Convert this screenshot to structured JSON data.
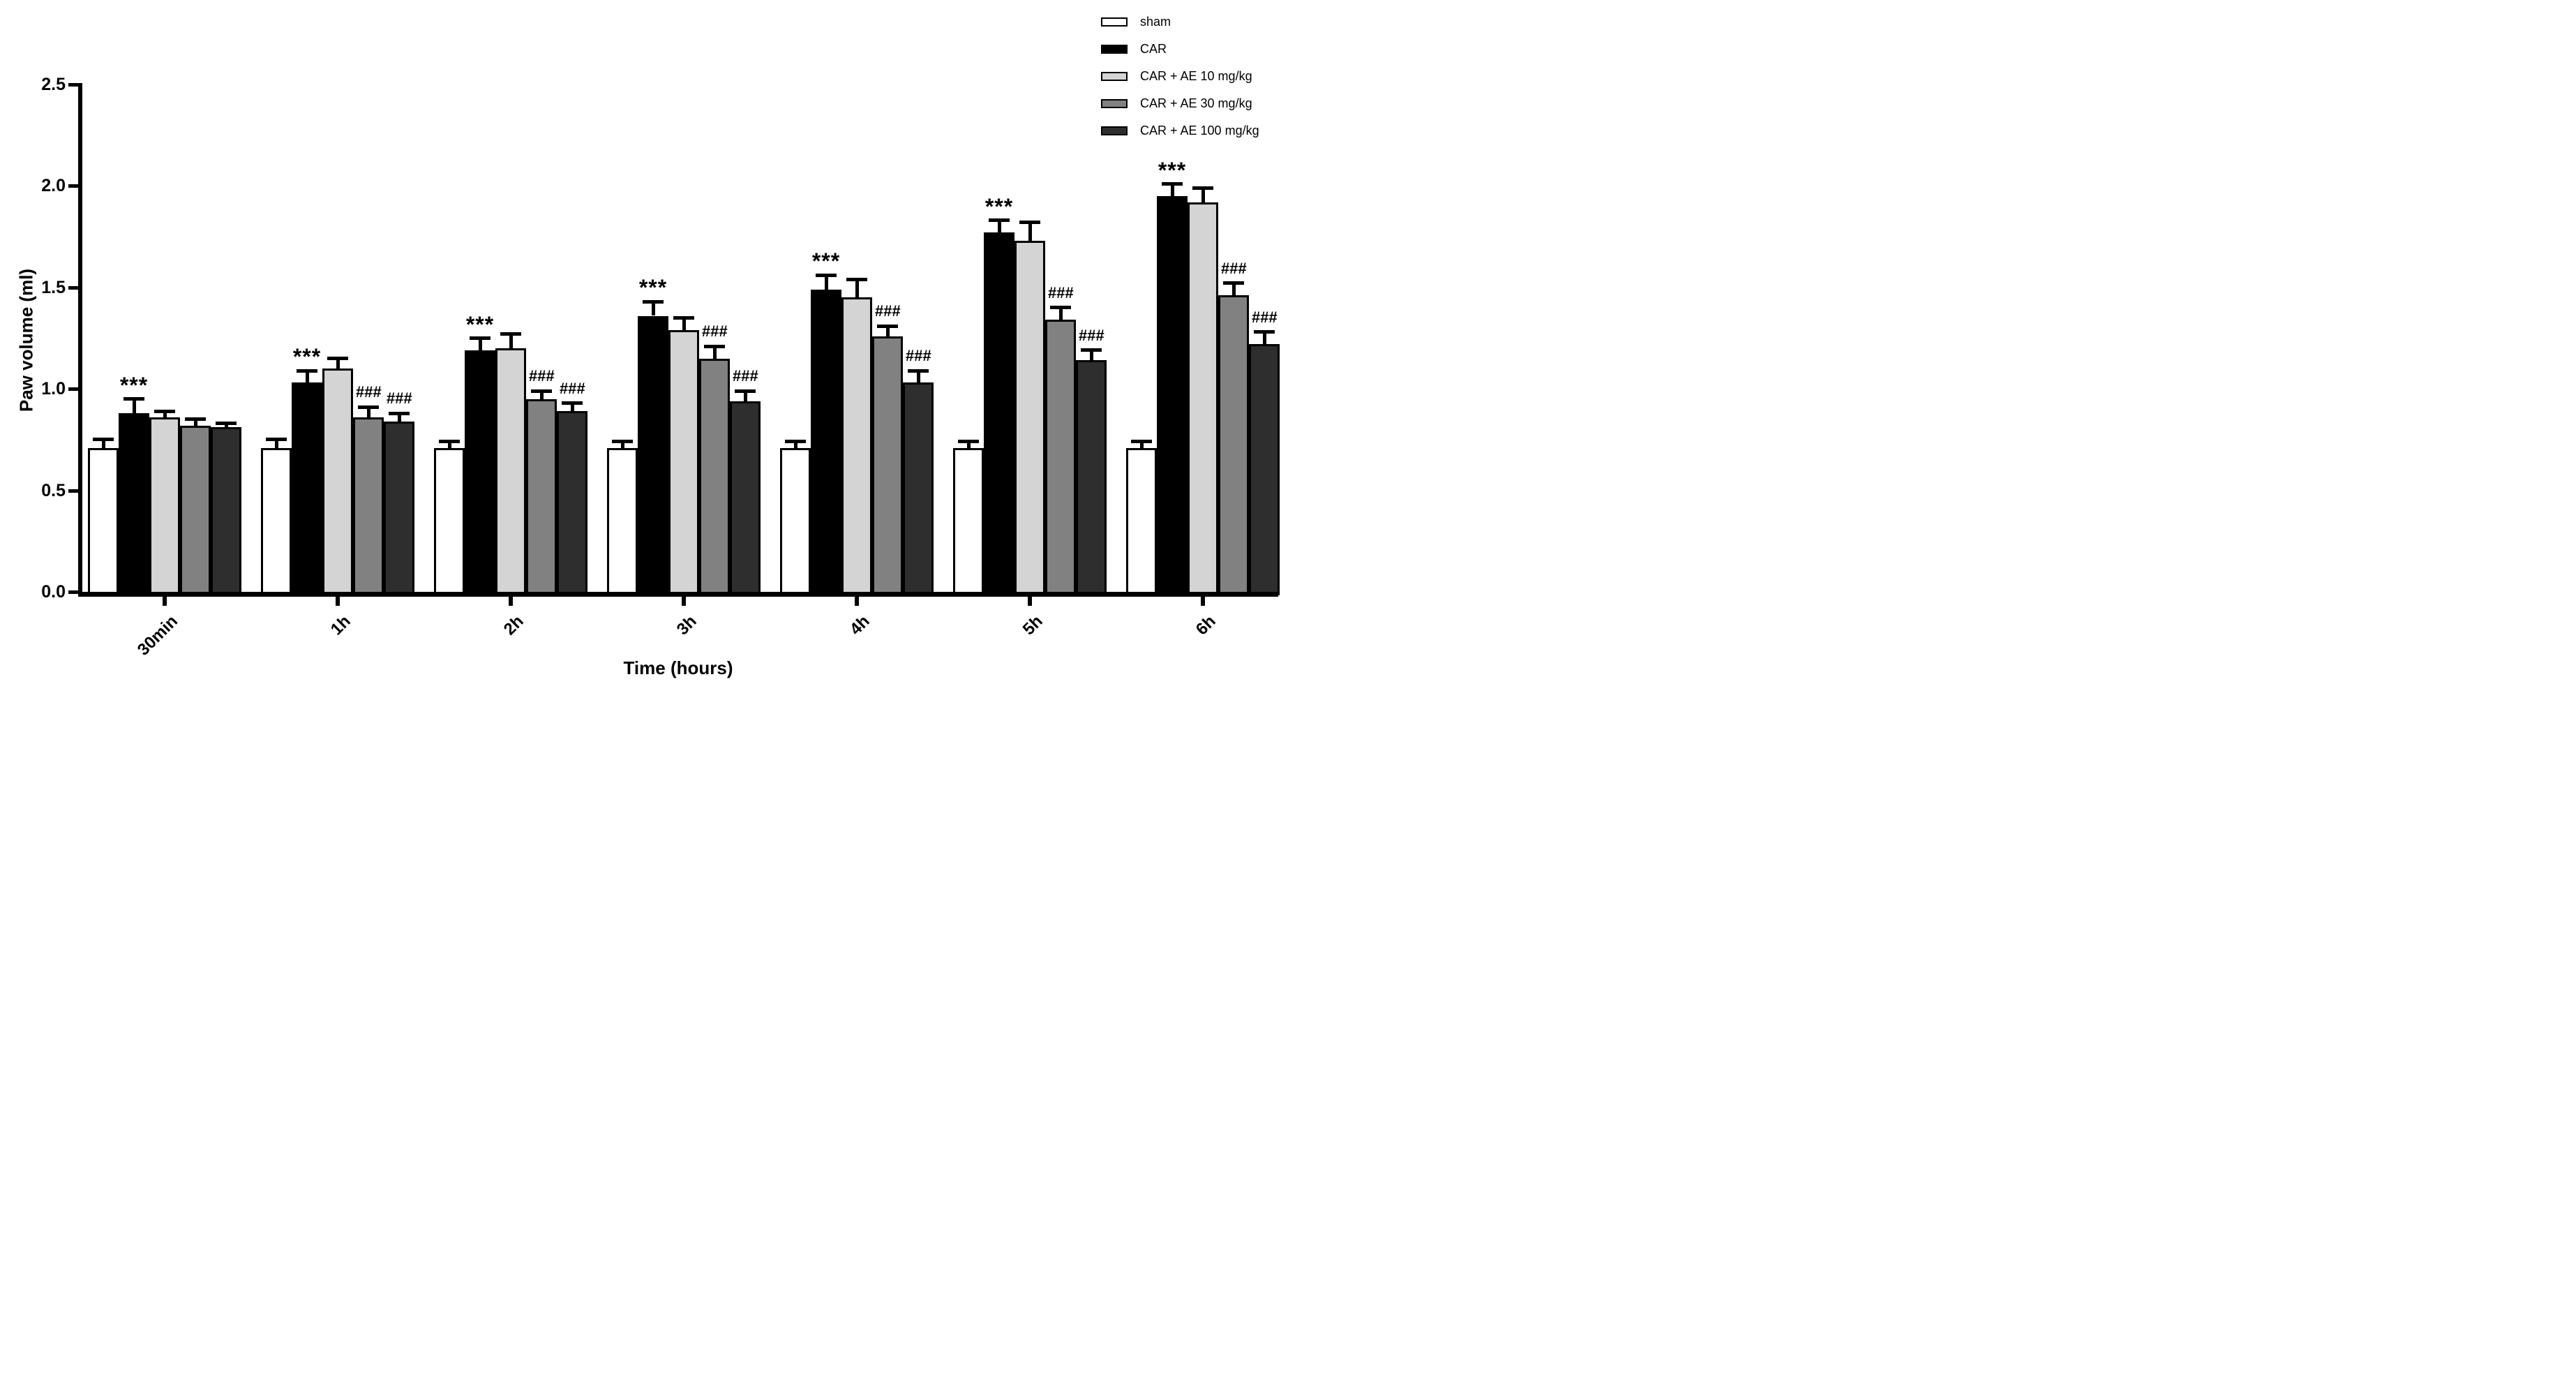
{
  "figure": {
    "background": "#ffffff",
    "significance_symbols": {
      "vs_sham": "***",
      "vs_car": "###"
    }
  },
  "chart_data": {
    "type": "bar",
    "title": "",
    "xlabel": "Time (hours)",
    "ylabel": "Paw volume (ml)",
    "ylim": [
      0,
      2.5
    ],
    "ytick_labels": [
      "0.0",
      "0.5",
      "1.0",
      "1.5",
      "2.0",
      "2.5"
    ],
    "yticks": [
      0,
      0.5,
      1.0,
      1.5,
      2.0,
      2.5
    ],
    "categories": [
      "30min",
      "1h",
      "2h",
      "3h",
      "4h",
      "5h",
      "6h"
    ],
    "grid": false,
    "legend_position": "top-right",
    "error_bars": "upper SEM caps",
    "series": [
      {
        "name": "sham",
        "color": "#ffffff",
        "border": "#000000",
        "values": [
          0.71,
          0.71,
          0.71,
          0.71,
          0.71,
          0.71,
          0.71
        ],
        "errors": [
          0.04,
          0.04,
          0.03,
          0.03,
          0.03,
          0.03,
          0.03
        ],
        "annotations": [
          "",
          "",
          "",
          "",
          "",
          "",
          ""
        ]
      },
      {
        "name": "CAR",
        "color": "#000000",
        "border": "#000000",
        "values": [
          0.88,
          1.03,
          1.19,
          1.36,
          1.49,
          1.77,
          1.95
        ],
        "errors": [
          0.07,
          0.06,
          0.06,
          0.07,
          0.07,
          0.06,
          0.06
        ],
        "annotations": [
          "***",
          "***",
          "***",
          "***",
          "***",
          "***",
          "***"
        ]
      },
      {
        "name": "CAR + AE 10 mg/kg",
        "color": "#d4d4d4",
        "border": "#000000",
        "values": [
          0.86,
          1.1,
          1.2,
          1.29,
          1.45,
          1.73,
          1.92
        ],
        "errors": [
          0.03,
          0.05,
          0.07,
          0.06,
          0.09,
          0.09,
          0.07
        ],
        "annotations": [
          "",
          "",
          "",
          "",
          "",
          "",
          ""
        ]
      },
      {
        "name": "CAR + AE 30 mg/kg",
        "color": "#818181",
        "border": "#000000",
        "values": [
          0.82,
          0.86,
          0.95,
          1.15,
          1.26,
          1.34,
          1.46
        ],
        "errors": [
          0.03,
          0.05,
          0.04,
          0.06,
          0.05,
          0.06,
          0.06
        ],
        "annotations": [
          "",
          "###",
          "###",
          "###",
          "###",
          "###",
          "###"
        ]
      },
      {
        "name": "CAR + AE 100 mg/kg",
        "color": "#2e2e2e",
        "border": "#000000",
        "values": [
          0.81,
          0.84,
          0.89,
          0.94,
          1.03,
          1.14,
          1.22
        ],
        "errors": [
          0.02,
          0.04,
          0.04,
          0.05,
          0.06,
          0.05,
          0.06
        ],
        "annotations": [
          "",
          "###",
          "###",
          "###",
          "###",
          "###",
          "###"
        ]
      }
    ]
  }
}
